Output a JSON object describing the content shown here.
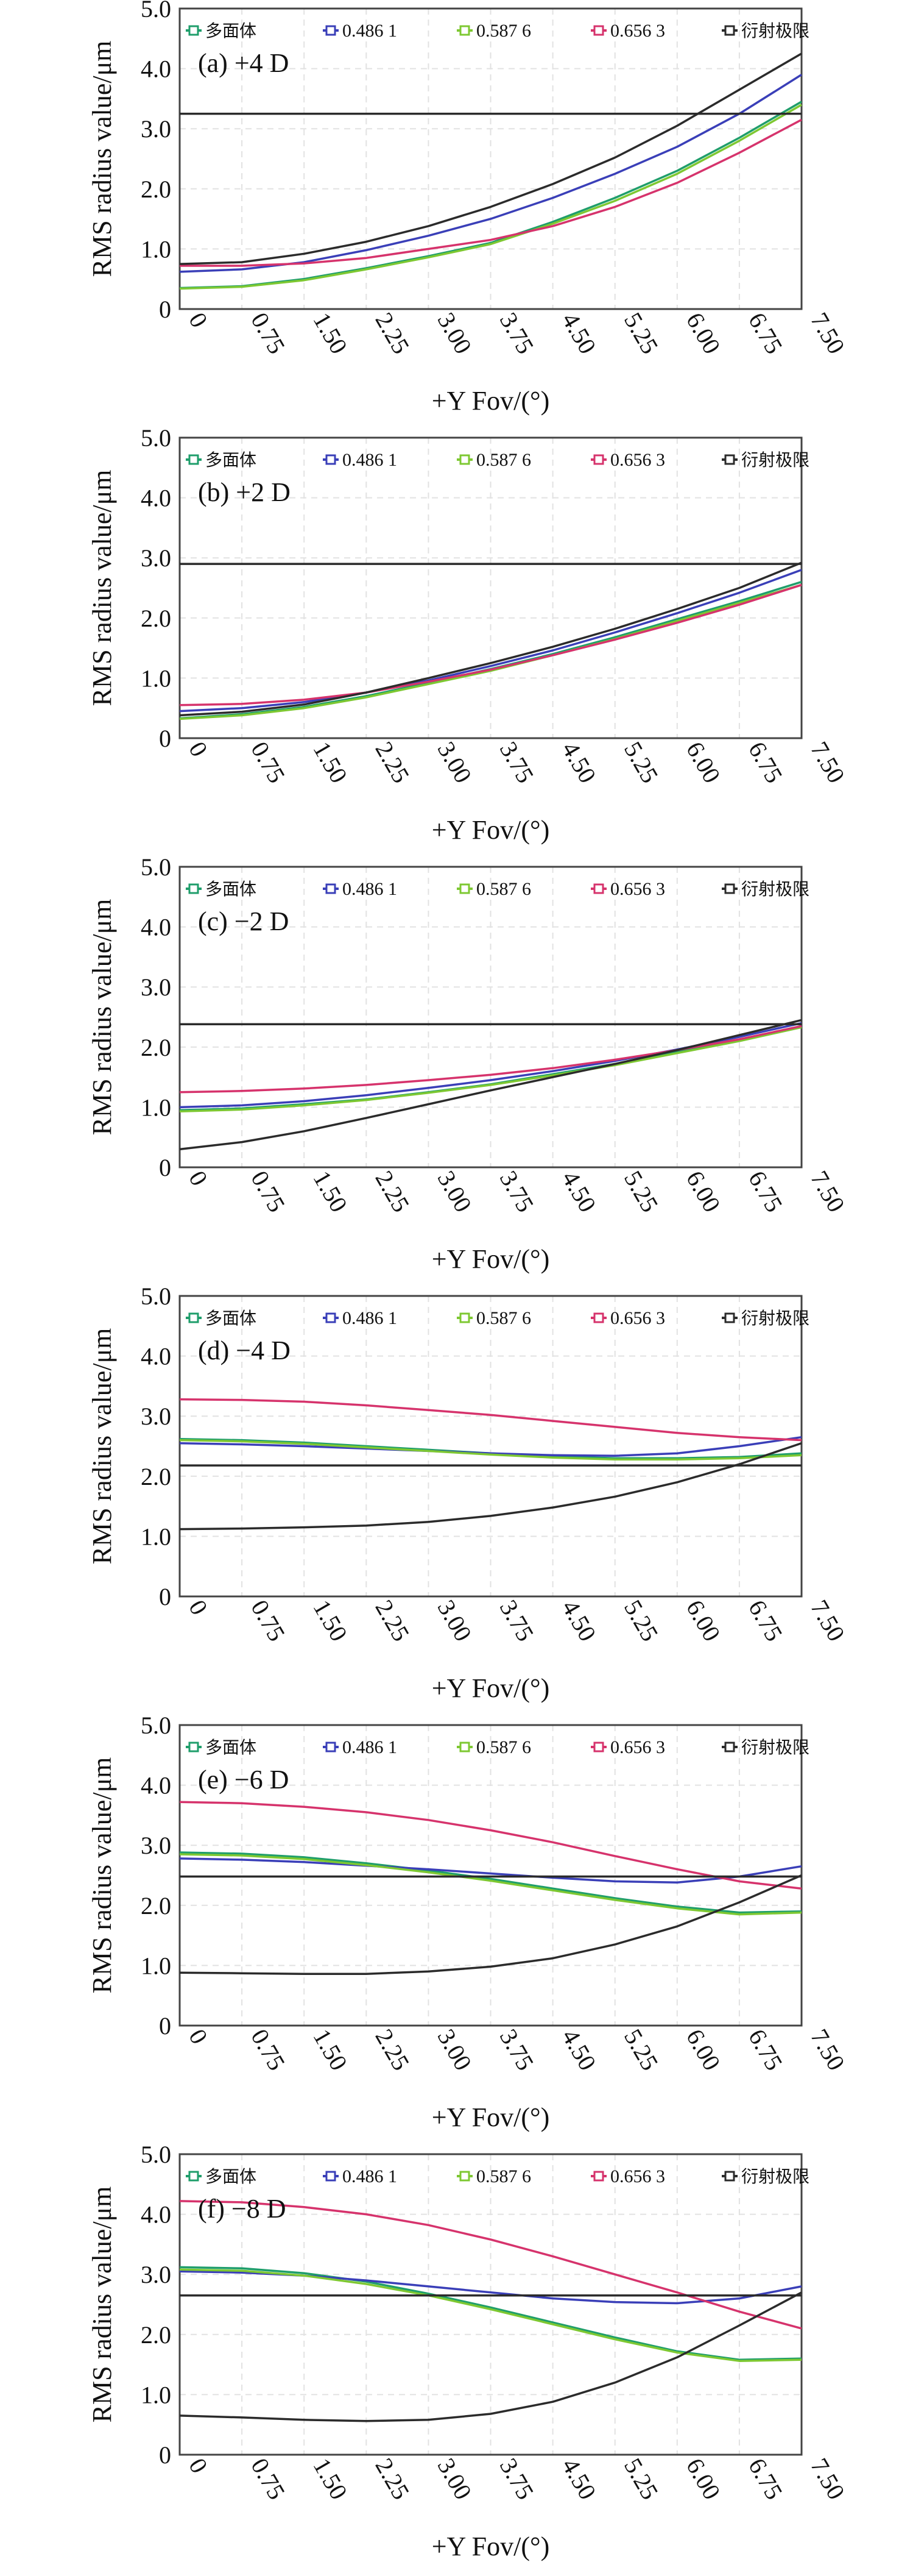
{
  "legend": [
    {
      "label": "多面体",
      "color": "#1f9e6b"
    },
    {
      "label": "0.486 1",
      "color": "#3a3fb8"
    },
    {
      "label": "0.587 6",
      "color": "#7ec832"
    },
    {
      "label": "0.656 3",
      "color": "#d6336c"
    },
    {
      "label": "衍射极限",
      "color": "#2b2b2b"
    }
  ],
  "chart_data": [
    {
      "type": "line",
      "panel_label": "(a) +4 D",
      "xlabel": "+Y Fov/(°)",
      "ylabel": "RMS radius value/μm",
      "x": [
        0,
        0.75,
        1.5,
        2.25,
        3.0,
        3.75,
        4.5,
        5.25,
        6.0,
        6.75,
        7.5
      ],
      "xticks": [
        "0",
        "0.75",
        "1.50",
        "2.25",
        "3.00",
        "3.75",
        "4.50",
        "5.25",
        "6.00",
        "6.75",
        "7.50"
      ],
      "ylim": [
        0,
        5
      ],
      "yticks": [
        "0",
        "1.0",
        "2.0",
        "3.0",
        "4.0",
        "5.0"
      ],
      "grid": true,
      "legend_position": "top",
      "series": [
        {
          "name": "多面体",
          "color": "#1f9e6b",
          "values": [
            0.35,
            0.38,
            0.5,
            0.68,
            0.88,
            1.1,
            1.45,
            1.85,
            2.3,
            2.85,
            3.45
          ]
        },
        {
          "name": "0.486 1",
          "color": "#3a3fb8",
          "values": [
            0.62,
            0.66,
            0.78,
            0.98,
            1.22,
            1.5,
            1.85,
            2.25,
            2.7,
            3.25,
            3.9
          ]
        },
        {
          "name": "0.587 6",
          "color": "#7ec832",
          "values": [
            0.34,
            0.37,
            0.48,
            0.66,
            0.86,
            1.08,
            1.42,
            1.8,
            2.25,
            2.8,
            3.4
          ]
        },
        {
          "name": "0.656 3",
          "color": "#d6336c",
          "values": [
            0.72,
            0.72,
            0.76,
            0.85,
            1.0,
            1.15,
            1.38,
            1.7,
            2.1,
            2.6,
            3.15
          ]
        },
        {
          "name": "衍射极限",
          "color": "#2b2b2b",
          "values": [
            3.25,
            3.25,
            3.25,
            3.25,
            3.25,
            3.25,
            3.25,
            3.25,
            3.25,
            3.25,
            3.25
          ]
        },
        {
          "name": "",
          "color": "#2b2b2b",
          "values": [
            0.75,
            0.78,
            0.92,
            1.12,
            1.38,
            1.7,
            2.08,
            2.52,
            3.05,
            3.65,
            4.25
          ]
        }
      ]
    },
    {
      "type": "line",
      "panel_label": "(b) +2 D",
      "xlabel": "+Y Fov/(°)",
      "ylabel": "RMS radius value/μm",
      "x": [
        0,
        0.75,
        1.5,
        2.25,
        3.0,
        3.75,
        4.5,
        5.25,
        6.0,
        6.75,
        7.5
      ],
      "xticks": [
        "0",
        "0.75",
        "1.50",
        "2.25",
        "3.00",
        "3.75",
        "4.50",
        "5.25",
        "6.00",
        "6.75",
        "7.50"
      ],
      "ylim": [
        0,
        5
      ],
      "yticks": [
        "0",
        "1.0",
        "2.0",
        "3.0",
        "4.0",
        "5.0"
      ],
      "grid": true,
      "legend_position": "top",
      "series": [
        {
          "name": "多面体",
          "color": "#1f9e6b",
          "values": [
            0.33,
            0.4,
            0.52,
            0.7,
            0.92,
            1.15,
            1.4,
            1.68,
            1.98,
            2.28,
            2.6
          ]
        },
        {
          "name": "0.486 1",
          "color": "#3a3fb8",
          "values": [
            0.45,
            0.5,
            0.6,
            0.76,
            0.96,
            1.2,
            1.46,
            1.76,
            2.08,
            2.42,
            2.8
          ]
        },
        {
          "name": "0.587 6",
          "color": "#7ec832",
          "values": [
            0.32,
            0.38,
            0.5,
            0.68,
            0.9,
            1.12,
            1.38,
            1.65,
            1.95,
            2.25,
            2.55
          ]
        },
        {
          "name": "0.656 3",
          "color": "#d6336c",
          "values": [
            0.55,
            0.57,
            0.64,
            0.76,
            0.94,
            1.14,
            1.38,
            1.64,
            1.92,
            2.22,
            2.55
          ]
        },
        {
          "name": "衍射极限",
          "color": "#2b2b2b",
          "values": [
            2.9,
            2.9,
            2.9,
            2.9,
            2.9,
            2.9,
            2.9,
            2.9,
            2.9,
            2.9,
            2.9
          ]
        },
        {
          "name": "",
          "color": "#2b2b2b",
          "values": [
            0.38,
            0.44,
            0.56,
            0.76,
            1.0,
            1.25,
            1.52,
            1.82,
            2.15,
            2.5,
            2.92
          ]
        }
      ]
    },
    {
      "type": "line",
      "panel_label": "(c) −2 D",
      "xlabel": "+Y Fov/(°)",
      "ylabel": "RMS radius value/μm",
      "x": [
        0,
        0.75,
        1.5,
        2.25,
        3.0,
        3.75,
        4.5,
        5.25,
        6.0,
        6.75,
        7.5
      ],
      "xticks": [
        "0",
        "0.75",
        "1.50",
        "2.25",
        "3.00",
        "3.75",
        "4.50",
        "5.25",
        "6.00",
        "6.75",
        "7.50"
      ],
      "ylim": [
        0,
        5
      ],
      "yticks": [
        "0",
        "1.0",
        "2.0",
        "3.0",
        "4.0",
        "5.0"
      ],
      "grid": true,
      "legend_position": "top",
      "series": [
        {
          "name": "多面体",
          "color": "#1f9e6b",
          "values": [
            0.95,
            0.98,
            1.05,
            1.13,
            1.25,
            1.38,
            1.55,
            1.72,
            1.92,
            2.12,
            2.35
          ]
        },
        {
          "name": "0.486 1",
          "color": "#3a3fb8",
          "values": [
            1.0,
            1.03,
            1.1,
            1.2,
            1.32,
            1.45,
            1.6,
            1.77,
            1.96,
            2.17,
            2.4
          ]
        },
        {
          "name": "0.587 6",
          "color": "#7ec832",
          "values": [
            0.93,
            0.96,
            1.03,
            1.12,
            1.24,
            1.37,
            1.53,
            1.7,
            1.9,
            2.1,
            2.33
          ]
        },
        {
          "name": "0.656 3",
          "color": "#d6336c",
          "values": [
            1.25,
            1.27,
            1.31,
            1.37,
            1.45,
            1.54,
            1.65,
            1.79,
            1.95,
            2.13,
            2.35
          ]
        },
        {
          "name": "衍射极限",
          "color": "#2b2b2b",
          "values": [
            2.38,
            2.38,
            2.38,
            2.38,
            2.38,
            2.38,
            2.38,
            2.38,
            2.38,
            2.38,
            2.38
          ]
        },
        {
          "name": "",
          "color": "#2b2b2b",
          "values": [
            0.3,
            0.42,
            0.6,
            0.82,
            1.05,
            1.28,
            1.5,
            1.72,
            1.95,
            2.2,
            2.45
          ]
        }
      ]
    },
    {
      "type": "line",
      "panel_label": "(d) −4 D",
      "xlabel": "+Y Fov/(°)",
      "ylabel": "RMS radius value/μm",
      "x": [
        0,
        0.75,
        1.5,
        2.25,
        3.0,
        3.75,
        4.5,
        5.25,
        6.0,
        6.75,
        7.5
      ],
      "xticks": [
        "0",
        "0.75",
        "1.50",
        "2.25",
        "3.00",
        "3.75",
        "4.50",
        "5.25",
        "6.00",
        "6.75",
        "7.50"
      ],
      "ylim": [
        0,
        5
      ],
      "yticks": [
        "0",
        "1.0",
        "2.0",
        "3.0",
        "4.0",
        "5.0"
      ],
      "grid": true,
      "legend_position": "top",
      "series": [
        {
          "name": "多面体",
          "color": "#1f9e6b",
          "values": [
            2.62,
            2.6,
            2.56,
            2.5,
            2.44,
            2.38,
            2.33,
            2.3,
            2.3,
            2.32,
            2.38
          ]
        },
        {
          "name": "0.486 1",
          "color": "#3a3fb8",
          "values": [
            2.55,
            2.53,
            2.5,
            2.46,
            2.42,
            2.38,
            2.35,
            2.34,
            2.38,
            2.5,
            2.65
          ]
        },
        {
          "name": "0.587 6",
          "color": "#7ec832",
          "values": [
            2.6,
            2.58,
            2.54,
            2.48,
            2.42,
            2.36,
            2.31,
            2.28,
            2.28,
            2.3,
            2.35
          ]
        },
        {
          "name": "0.656 3",
          "color": "#d6336c",
          "values": [
            3.28,
            3.27,
            3.24,
            3.18,
            3.1,
            3.02,
            2.92,
            2.82,
            2.72,
            2.65,
            2.6
          ]
        },
        {
          "name": "衍射极限",
          "color": "#2b2b2b",
          "values": [
            2.18,
            2.18,
            2.18,
            2.18,
            2.18,
            2.18,
            2.18,
            2.18,
            2.18,
            2.18,
            2.18
          ]
        },
        {
          "name": "",
          "color": "#2b2b2b",
          "values": [
            1.12,
            1.13,
            1.15,
            1.18,
            1.24,
            1.34,
            1.48,
            1.66,
            1.9,
            2.2,
            2.55
          ]
        }
      ]
    },
    {
      "type": "line",
      "panel_label": "(e) −6 D",
      "xlabel": "+Y Fov/(°)",
      "ylabel": "RMS radius value/μm",
      "x": [
        0,
        0.75,
        1.5,
        2.25,
        3.0,
        3.75,
        4.5,
        5.25,
        6.0,
        6.75,
        7.5
      ],
      "xticks": [
        "0",
        "0.75",
        "1.50",
        "2.25",
        "3.00",
        "3.75",
        "4.50",
        "5.25",
        "6.00",
        "6.75",
        "7.50"
      ],
      "ylim": [
        0,
        5
      ],
      "yticks": [
        "0",
        "1.0",
        "2.0",
        "3.0",
        "4.0",
        "5.0"
      ],
      "grid": true,
      "legend_position": "top",
      "series": [
        {
          "name": "多面体",
          "color": "#1f9e6b",
          "values": [
            2.88,
            2.86,
            2.8,
            2.7,
            2.58,
            2.44,
            2.28,
            2.12,
            1.98,
            1.88,
            1.9
          ]
        },
        {
          "name": "0.486 1",
          "color": "#3a3fb8",
          "values": [
            2.78,
            2.76,
            2.72,
            2.66,
            2.6,
            2.53,
            2.46,
            2.4,
            2.38,
            2.48,
            2.65
          ]
        },
        {
          "name": "0.587 6",
          "color": "#7ec832",
          "values": [
            2.85,
            2.83,
            2.77,
            2.67,
            2.55,
            2.41,
            2.25,
            2.09,
            1.95,
            1.85,
            1.88
          ]
        },
        {
          "name": "0.656 3",
          "color": "#d6336c",
          "values": [
            3.72,
            3.7,
            3.64,
            3.55,
            3.42,
            3.25,
            3.05,
            2.82,
            2.6,
            2.4,
            2.28
          ]
        },
        {
          "name": "衍射极限",
          "color": "#2b2b2b",
          "values": [
            2.48,
            2.48,
            2.48,
            2.48,
            2.48,
            2.48,
            2.48,
            2.48,
            2.48,
            2.48,
            2.48
          ]
        },
        {
          "name": "",
          "color": "#2b2b2b",
          "values": [
            0.88,
            0.87,
            0.86,
            0.86,
            0.9,
            0.98,
            1.12,
            1.35,
            1.65,
            2.05,
            2.5
          ]
        }
      ]
    },
    {
      "type": "line",
      "panel_label": "(f) −8 D",
      "xlabel": "+Y Fov/(°)",
      "ylabel": "RMS radius value/μm",
      "x": [
        0,
        0.75,
        1.5,
        2.25,
        3.0,
        3.75,
        4.5,
        5.25,
        6.0,
        6.75,
        7.5
      ],
      "xticks": [
        "0",
        "0.75",
        "1.50",
        "2.25",
        "3.00",
        "3.75",
        "4.50",
        "5.25",
        "6.00",
        "6.75",
        "7.50"
      ],
      "ylim": [
        0,
        5
      ],
      "yticks": [
        "0",
        "1.0",
        "2.0",
        "3.0",
        "4.0",
        "5.0"
      ],
      "grid": true,
      "legend_position": "top",
      "series": [
        {
          "name": "多面体",
          "color": "#1f9e6b",
          "values": [
            3.12,
            3.1,
            3.02,
            2.88,
            2.68,
            2.45,
            2.2,
            1.95,
            1.72,
            1.58,
            1.6
          ]
        },
        {
          "name": "0.486 1",
          "color": "#3a3fb8",
          "values": [
            3.05,
            3.03,
            2.98,
            2.9,
            2.8,
            2.7,
            2.6,
            2.54,
            2.52,
            2.6,
            2.8
          ]
        },
        {
          "name": "0.587 6",
          "color": "#7ec832",
          "values": [
            3.08,
            3.06,
            2.98,
            2.84,
            2.65,
            2.42,
            2.17,
            1.92,
            1.7,
            1.56,
            1.58
          ]
        },
        {
          "name": "0.656 3",
          "color": "#d6336c",
          "values": [
            4.22,
            4.2,
            4.12,
            4.0,
            3.82,
            3.58,
            3.3,
            3.0,
            2.7,
            2.38,
            2.1
          ]
        },
        {
          "name": "衍射极限",
          "color": "#2b2b2b",
          "values": [
            2.65,
            2.65,
            2.65,
            2.65,
            2.65,
            2.65,
            2.65,
            2.65,
            2.65,
            2.65,
            2.65
          ]
        },
        {
          "name": "",
          "color": "#2b2b2b",
          "values": [
            0.65,
            0.62,
            0.58,
            0.56,
            0.58,
            0.68,
            0.88,
            1.2,
            1.62,
            2.15,
            2.7
          ]
        }
      ]
    }
  ]
}
